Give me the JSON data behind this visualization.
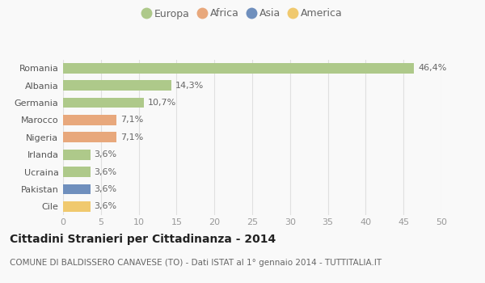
{
  "countries": [
    "Romania",
    "Albania",
    "Germania",
    "Marocco",
    "Nigeria",
    "Irlanda",
    "Ucraina",
    "Pakistan",
    "Cile"
  ],
  "values": [
    46.4,
    14.3,
    10.7,
    7.1,
    7.1,
    3.6,
    3.6,
    3.6,
    3.6
  ],
  "labels": [
    "46,4%",
    "14,3%",
    "10,7%",
    "7,1%",
    "7,1%",
    "3,6%",
    "3,6%",
    "3,6%",
    "3,6%"
  ],
  "colors": [
    "#aec98a",
    "#aec98a",
    "#aec98a",
    "#e8a87c",
    "#e8a87c",
    "#aec98a",
    "#aec98a",
    "#6f8fbd",
    "#f0c96e"
  ],
  "legend": [
    {
      "label": "Europa",
      "color": "#aec98a"
    },
    {
      "label": "Africa",
      "color": "#e8a87c"
    },
    {
      "label": "Asia",
      "color": "#6f8fbd"
    },
    {
      "label": "America",
      "color": "#f0c96e"
    }
  ],
  "xlim": [
    0,
    50
  ],
  "xticks": [
    0,
    5,
    10,
    15,
    20,
    25,
    30,
    35,
    40,
    45,
    50
  ],
  "title": "Cittadini Stranieri per Cittadinanza - 2014",
  "subtitle": "COMUNE DI BALDISSERO CANAVESE (TO) - Dati ISTAT al 1° gennaio 2014 - TUTTITALIA.IT",
  "background_color": "#f9f9f9",
  "grid_color": "#e0e0e0",
  "bar_height": 0.6,
  "label_fontsize": 8,
  "tick_fontsize": 8,
  "title_fontsize": 10,
  "subtitle_fontsize": 7.5
}
